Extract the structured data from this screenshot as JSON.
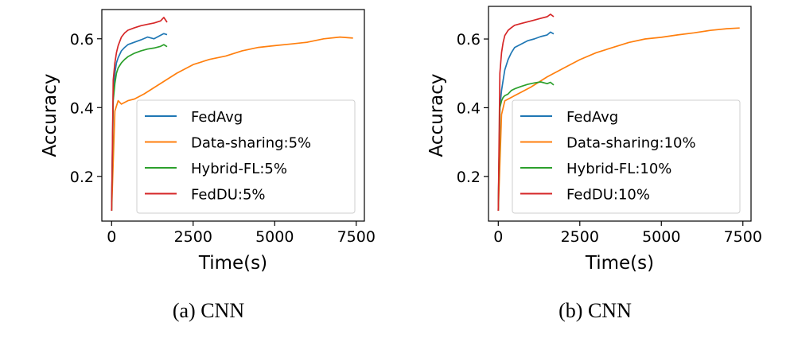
{
  "chart_data": [
    {
      "type": "line",
      "caption": "(a) CNN",
      "xlabel": "Time(s)",
      "ylabel": "Accuracy",
      "xlim": [
        -300,
        7750
      ],
      "ylim": [
        0.07,
        0.685
      ],
      "xticks": [
        0,
        2500,
        5000,
        7500
      ],
      "xtick_labels": [
        "0",
        "2500",
        "5000",
        "7500"
      ],
      "yticks": [
        0.2,
        0.4,
        0.6
      ],
      "ytick_labels": [
        "0.2",
        "0.4",
        "0.6"
      ],
      "legend_position": "lower-right",
      "series": [
        {
          "name": "FedAvg",
          "color": "#1f77b4",
          "x": [
            0,
            50,
            100,
            150,
            200,
            300,
            400,
            500,
            700,
            900,
            1100,
            1300,
            1500,
            1600,
            1700
          ],
          "y": [
            0.1,
            0.44,
            0.5,
            0.53,
            0.545,
            0.565,
            0.575,
            0.583,
            0.59,
            0.597,
            0.605,
            0.6,
            0.61,
            0.615,
            0.612
          ]
        },
        {
          "name": "Data-sharing:5%",
          "color": "#ff7f0e",
          "x": [
            0,
            100,
            200,
            300,
            400,
            500,
            700,
            1000,
            1500,
            2000,
            2500,
            3000,
            3500,
            4000,
            4500,
            5000,
            5500,
            6000,
            6500,
            7000,
            7400
          ],
          "y": [
            0.1,
            0.39,
            0.42,
            0.41,
            0.415,
            0.42,
            0.425,
            0.44,
            0.47,
            0.5,
            0.525,
            0.54,
            0.55,
            0.565,
            0.575,
            0.58,
            0.585,
            0.59,
            0.6,
            0.605,
            0.602
          ]
        },
        {
          "name": "Hybrid-FL:5%",
          "color": "#2ca02c",
          "x": [
            0,
            50,
            100,
            150,
            200,
            300,
            400,
            500,
            700,
            900,
            1100,
            1300,
            1500,
            1600,
            1700
          ],
          "y": [
            0.1,
            0.42,
            0.47,
            0.5,
            0.515,
            0.53,
            0.54,
            0.548,
            0.558,
            0.565,
            0.57,
            0.573,
            0.578,
            0.583,
            0.577
          ]
        },
        {
          "name": "FedDU:5%",
          "color": "#d62728",
          "x": [
            0,
            50,
            100,
            150,
            200,
            300,
            400,
            500,
            700,
            900,
            1100,
            1300,
            1500,
            1600,
            1700
          ],
          "y": [
            0.1,
            0.48,
            0.53,
            0.56,
            0.58,
            0.605,
            0.617,
            0.625,
            0.632,
            0.638,
            0.642,
            0.646,
            0.652,
            0.662,
            0.648
          ]
        }
      ]
    },
    {
      "type": "line",
      "caption": "(b) CNN",
      "xlabel": "Time(s)",
      "ylabel": "Accuracy",
      "xlim": [
        -300,
        7750
      ],
      "ylim": [
        0.07,
        0.695
      ],
      "xticks": [
        0,
        2500,
        5000,
        7500
      ],
      "xtick_labels": [
        "0",
        "2500",
        "5000",
        "7500"
      ],
      "yticks": [
        0.2,
        0.4,
        0.6
      ],
      "ytick_labels": [
        "0.2",
        "0.4",
        "0.6"
      ],
      "legend_position": "lower-right",
      "series": [
        {
          "name": "FedAvg",
          "color": "#1f77b4",
          "x": [
            0,
            50,
            100,
            150,
            200,
            300,
            400,
            500,
            700,
            900,
            1100,
            1300,
            1500,
            1600,
            1700
          ],
          "y": [
            0.1,
            0.4,
            0.45,
            0.48,
            0.51,
            0.54,
            0.56,
            0.575,
            0.585,
            0.595,
            0.6,
            0.607,
            0.612,
            0.62,
            0.615
          ]
        },
        {
          "name": "Data-sharing:10%",
          "color": "#ff7f0e",
          "x": [
            0,
            100,
            200,
            300,
            400,
            500,
            700,
            1000,
            1500,
            2000,
            2500,
            3000,
            3500,
            4000,
            4500,
            5000,
            5500,
            6000,
            6500,
            7000,
            7400
          ],
          "y": [
            0.1,
            0.38,
            0.42,
            0.425,
            0.43,
            0.435,
            0.445,
            0.46,
            0.49,
            0.515,
            0.54,
            0.56,
            0.575,
            0.59,
            0.6,
            0.605,
            0.612,
            0.618,
            0.625,
            0.63,
            0.632
          ]
        },
        {
          "name": "Hybrid-FL:10%",
          "color": "#2ca02c",
          "x": [
            0,
            50,
            100,
            150,
            200,
            300,
            400,
            500,
            700,
            900,
            1100,
            1300,
            1500,
            1600,
            1700
          ],
          "y": [
            0.1,
            0.4,
            0.42,
            0.43,
            0.435,
            0.44,
            0.45,
            0.455,
            0.462,
            0.468,
            0.472,
            0.475,
            0.47,
            0.474,
            0.466
          ]
        },
        {
          "name": "FedDU:10%",
          "color": "#d62728",
          "x": [
            0,
            50,
            100,
            150,
            200,
            300,
            400,
            500,
            700,
            900,
            1100,
            1300,
            1500,
            1600,
            1700
          ],
          "y": [
            0.1,
            0.5,
            0.56,
            0.59,
            0.61,
            0.625,
            0.633,
            0.64,
            0.645,
            0.65,
            0.655,
            0.66,
            0.665,
            0.672,
            0.665
          ]
        }
      ]
    }
  ]
}
